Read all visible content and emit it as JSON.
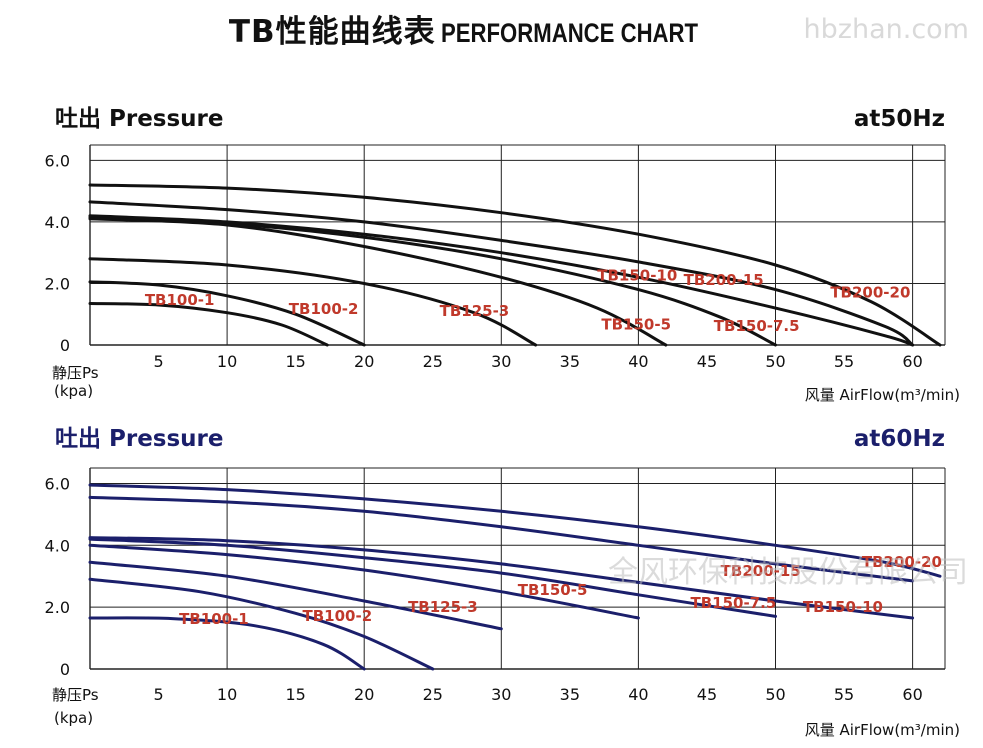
{
  "page": {
    "title_cn": "TB性能曲线表",
    "title_en": "PERFORMANCE CHART",
    "watermark_top": "hbzhan.com",
    "watermark_center": "全风环保科技股份有限公司"
  },
  "chart_data": [
    {
      "type": "line",
      "title": "吐出 Pressure",
      "frequency_label": "at50Hz",
      "ylabel": "静压Ps",
      "ylabel_unit": "(kpa)",
      "xlabel": "风量 AirFlow(m³/min)",
      "xlim": [
        0,
        62
      ],
      "ylim": [
        0,
        6.5
      ],
      "x_ticks": [
        5,
        10,
        15,
        20,
        25,
        30,
        35,
        40,
        45,
        50,
        55,
        60
      ],
      "y_ticks": [
        "0",
        "2.0",
        "4.0",
        "6.0"
      ],
      "y_tick_values": [
        0,
        2,
        4,
        6
      ],
      "grid": true,
      "line_color": "#111111",
      "label_color": "#c0392b",
      "series": [
        {
          "name": "TB100-1",
          "points": [
            [
              0,
              1.35
            ],
            [
              5,
              1.3
            ],
            [
              10,
              1.05
            ],
            [
              14,
              0.65
            ],
            [
              17.3,
              0
            ]
          ]
        },
        {
          "name": "TB100-2",
          "points": [
            [
              0,
              2.05
            ],
            [
              5,
              1.95
            ],
            [
              10,
              1.6
            ],
            [
              15,
              1.0
            ],
            [
              20,
              0
            ]
          ]
        },
        {
          "name": "TB125-3",
          "points": [
            [
              0,
              2.8
            ],
            [
              10,
              2.6
            ],
            [
              20,
              2.0
            ],
            [
              28,
              1.05
            ],
            [
              32.5,
              0
            ]
          ]
        },
        {
          "name": "TB150-5",
          "points": [
            [
              0,
              4.1
            ],
            [
              10,
              3.9
            ],
            [
              20,
              3.2
            ],
            [
              30,
              2.2
            ],
            [
              37,
              1.2
            ],
            [
              42,
              0
            ]
          ]
        },
        {
          "name": "TB150-7.5",
          "points": [
            [
              0,
              4.15
            ],
            [
              10,
              3.95
            ],
            [
              20,
              3.5
            ],
            [
              30,
              2.8
            ],
            [
              40,
              1.8
            ],
            [
              46,
              0.9
            ],
            [
              50,
              0
            ]
          ]
        },
        {
          "name": "TB150-10",
          "points": [
            [
              0,
              4.2
            ],
            [
              10,
              4.0
            ],
            [
              20,
              3.6
            ],
            [
              30,
              3.0
            ],
            [
              40,
              2.2
            ],
            [
              50,
              1.2
            ],
            [
              58,
              0.3
            ],
            [
              60,
              0
            ]
          ]
        },
        {
          "name": "TB200-15",
          "points": [
            [
              0,
              4.65
            ],
            [
              10,
              4.4
            ],
            [
              20,
              4.0
            ],
            [
              30,
              3.4
            ],
            [
              40,
              2.7
            ],
            [
              50,
              1.8
            ],
            [
              58,
              0.6
            ],
            [
              60,
              0
            ]
          ]
        },
        {
          "name": "TB200-20",
          "points": [
            [
              0,
              5.2
            ],
            [
              10,
              5.1
            ],
            [
              20,
              4.8
            ],
            [
              30,
              4.3
            ],
            [
              40,
              3.6
            ],
            [
              50,
              2.6
            ],
            [
              57,
              1.4
            ],
            [
              62,
              0
            ]
          ]
        }
      ],
      "labels": [
        {
          "text": "TB100-1",
          "x": 4,
          "y": 1.3
        },
        {
          "text": "TB100-2",
          "x": 14.5,
          "y": 1.0
        },
        {
          "text": "TB125-3",
          "x": 25.5,
          "y": 0.95
        },
        {
          "text": "TB150-5",
          "x": 37.3,
          "y": 0.5
        },
        {
          "text": "TB150-7.5",
          "x": 45.5,
          "y": 0.45
        },
        {
          "text": "TB150-10",
          "x": 37,
          "y": 2.1
        },
        {
          "text": "TB200-15",
          "x": 43.3,
          "y": 1.95
        },
        {
          "text": "TB200-20",
          "x": 54,
          "y": 1.55
        }
      ]
    },
    {
      "type": "line",
      "title": "吐出 Pressure",
      "frequency_label": "at60Hz",
      "ylabel": "静压Ps",
      "ylabel_unit": "(kpa)",
      "xlabel": "风量 AirFlow(m³/min)",
      "xlim": [
        0,
        62
      ],
      "ylim": [
        0,
        6.5
      ],
      "x_ticks": [
        5,
        10,
        15,
        20,
        25,
        30,
        35,
        40,
        45,
        50,
        55,
        60
      ],
      "y_ticks": [
        "0",
        "2.0",
        "4.0",
        "6.0"
      ],
      "y_tick_values": [
        0,
        2,
        4,
        6
      ],
      "grid": true,
      "line_color": "#1b1f6b",
      "title_color": "#1b1f6b",
      "label_color": "#c0392b",
      "series": [
        {
          "name": "TB100-1",
          "points": [
            [
              0,
              1.65
            ],
            [
              6,
              1.63
            ],
            [
              12,
              1.4
            ],
            [
              17,
              0.8
            ],
            [
              20,
              0
            ]
          ]
        },
        {
          "name": "TB100-2",
          "points": [
            [
              0,
              2.9
            ],
            [
              8,
              2.5
            ],
            [
              15,
              1.8
            ],
            [
              20,
              1.05
            ],
            [
              25,
              0
            ]
          ]
        },
        {
          "name": "TB125-3",
          "points": [
            [
              0,
              3.45
            ],
            [
              10,
              3.0
            ],
            [
              20,
              2.2
            ],
            [
              30,
              1.3
            ]
          ]
        },
        {
          "name": "TB150-5",
          "points": [
            [
              0,
              4.0
            ],
            [
              10,
              3.7
            ],
            [
              20,
              3.2
            ],
            [
              30,
              2.5
            ],
            [
              40,
              1.65
            ]
          ]
        },
        {
          "name": "TB150-7.5",
          "points": [
            [
              0,
              4.2
            ],
            [
              10,
              4.0
            ],
            [
              20,
              3.6
            ],
            [
              30,
              3.1
            ],
            [
              40,
              2.4
            ],
            [
              50,
              1.7
            ]
          ]
        },
        {
          "name": "TB150-10",
          "points": [
            [
              0,
              4.25
            ],
            [
              10,
              4.15
            ],
            [
              20,
              3.85
            ],
            [
              30,
              3.4
            ],
            [
              40,
              2.8
            ],
            [
              50,
              2.2
            ],
            [
              60,
              1.65
            ]
          ]
        },
        {
          "name": "TB200-15",
          "points": [
            [
              0,
              5.55
            ],
            [
              10,
              5.4
            ],
            [
              20,
              5.1
            ],
            [
              30,
              4.6
            ],
            [
              40,
              4.0
            ],
            [
              50,
              3.4
            ],
            [
              60,
              2.85
            ]
          ]
        },
        {
          "name": "TB200-20",
          "points": [
            [
              0,
              5.95
            ],
            [
              10,
              5.8
            ],
            [
              20,
              5.5
            ],
            [
              30,
              5.1
            ],
            [
              40,
              4.6
            ],
            [
              50,
              4.0
            ],
            [
              58,
              3.45
            ],
            [
              62,
              3.0
            ]
          ]
        }
      ],
      "labels": [
        {
          "text": "TB100-1",
          "x": 6.5,
          "y": 1.45
        },
        {
          "text": "TB100-2",
          "x": 15.5,
          "y": 1.55
        },
        {
          "text": "TB125-3",
          "x": 23.2,
          "y": 1.85
        },
        {
          "text": "TB150-5",
          "x": 31.2,
          "y": 2.4
        },
        {
          "text": "TB150-7.5",
          "x": 43.8,
          "y": 1.98
        },
        {
          "text": "TB150-10",
          "x": 52,
          "y": 1.85
        },
        {
          "text": "TB200-15",
          "x": 46,
          "y": 3.0
        },
        {
          "text": "TB200-20",
          "x": 56.3,
          "y": 3.3
        }
      ]
    }
  ]
}
